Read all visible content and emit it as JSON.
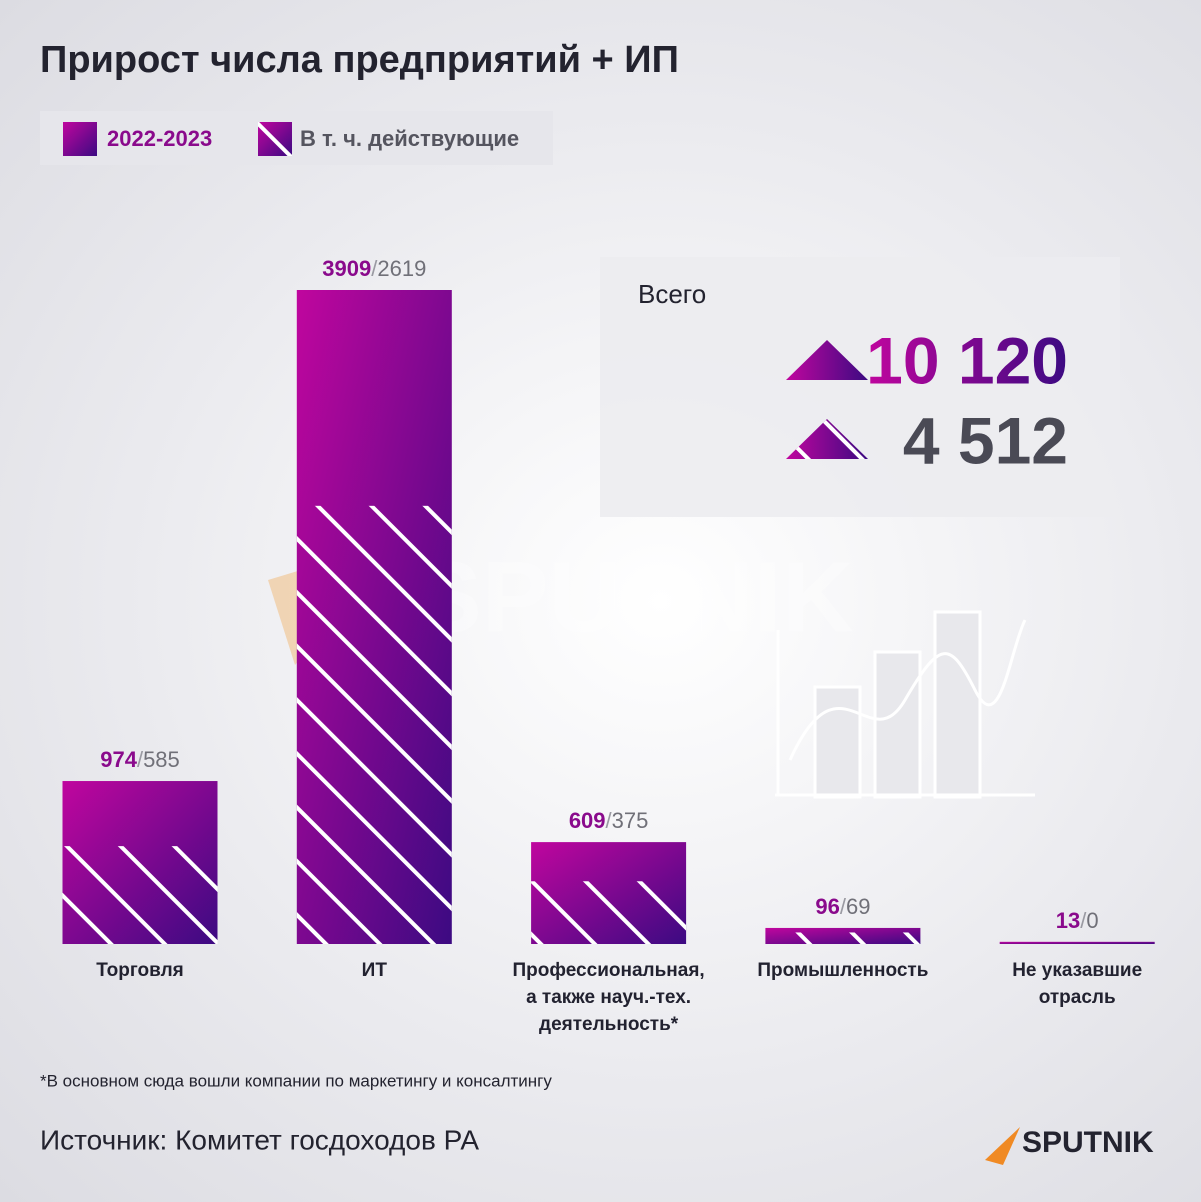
{
  "chart_data": {
    "type": "bar",
    "title": "Прирост числа предприятий + ИП",
    "categories": [
      "Торговля",
      "ИТ",
      "Профессиональная,\nа также науч.-тех.\nдеятельность*",
      "Промышленность",
      "Не указавшие\nотрасль"
    ],
    "series": [
      {
        "name": "2022-2023",
        "color": "#c0069e",
        "values": [
          974,
          3909,
          609,
          96,
          13
        ]
      },
      {
        "name": "В т. ч. действующие",
        "color": "#ffffff",
        "values": [
          585,
          2619,
          375,
          69,
          0
        ]
      }
    ],
    "label_separator": "/",
    "totals": {
      "label": "Всего",
      "values": [
        10120,
        4512
      ],
      "value_labels": [
        "10 120",
        "4 512"
      ]
    },
    "footnote": "*В основном сюда вошли компании по маркетингу и консалтингу",
    "source": "Источник: Комитет госдоходов РА",
    "brand": "SPUTNIK"
  }
}
